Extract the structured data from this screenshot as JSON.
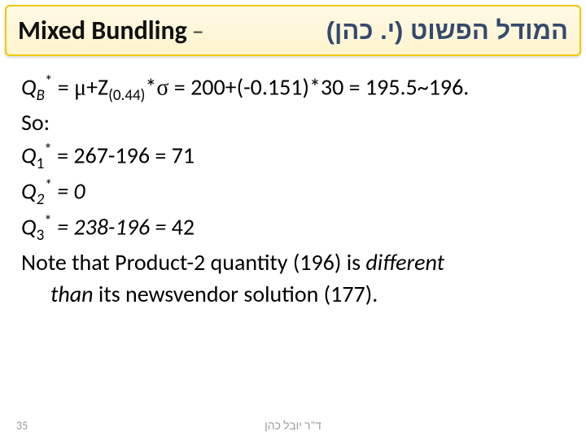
{
  "title": {
    "left": "Mixed Bundling",
    "dash": "–",
    "right": "המודל הפשוט (י. כהן)"
  },
  "body": {
    "l1_a": "Q",
    "l1_sub1": "B",
    "l1_sup1": "*",
    "l1_b": " = ",
    "l1_mu": "μ",
    "l1_c": "+Z",
    "l1_sub2": "(0.44)",
    "l1_d": "*",
    "l1_sigma": "σ",
    "l1_e": " = 200+(-0.151)*30 = 195.5~196.",
    "l2": "So:",
    "l3_a": "Q",
    "l3_sub": "1",
    "l3_sup": "*",
    "l3_b": " = 267-196 = 71",
    "l4_a": "Q",
    "l4_sub": "2",
    "l4_sup": "*",
    "l4_b": " = 0",
    "l5_a": "Q",
    "l5_sub": "3",
    "l5_sup": "*",
    "l5_b": " = 238-196 = 42",
    "l6_a": "Note that Product-2 quantity (196) is ",
    "l6_i": "different",
    "l7": "than its newsvendor solution (177)."
  },
  "footer": {
    "page": "35",
    "author": "ד\"ר יובל כהן"
  },
  "colors": {
    "title_right": "#354a6b",
    "border": "#f0c800",
    "footer_text": "#9a9a9a"
  }
}
